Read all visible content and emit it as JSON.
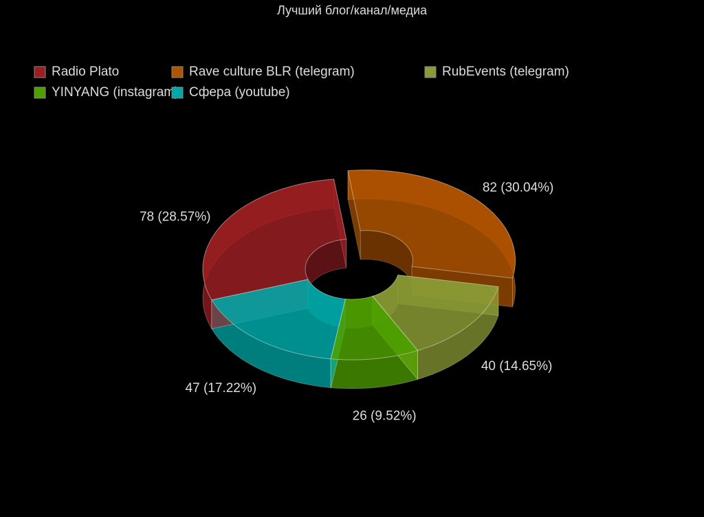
{
  "chart_data": {
    "type": "donut3d",
    "title": "Лучший блог/канал/медиа",
    "categories": [
      "Radio Plato",
      "Rave culture BLR (telegram)",
      "RubEvents (telegram)",
      "YINYANG (instagram)",
      "Сфера (youtube)"
    ],
    "values": [
      78,
      82,
      40,
      26,
      47
    ],
    "value_labels": [
      "78 (28.57%)",
      "82 (30.04%)",
      "40 (14.65%)",
      "26 (9.52%)",
      "47 (17.22%)"
    ],
    "colors": [
      "#9a1e22",
      "#b05400",
      "#8a9a34",
      "#4ea000",
      "#00a8a8"
    ]
  }
}
